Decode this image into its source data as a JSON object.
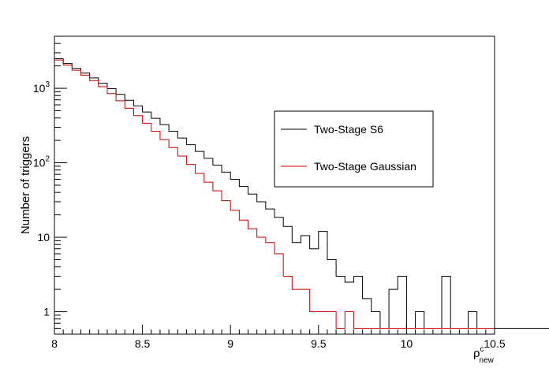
{
  "chart_data": {
    "type": "line",
    "subtype": "step-histogram",
    "title": "",
    "xlabel": "ρ",
    "xlabel_superscript": "c",
    "xlabel_subscript": "new",
    "ylabel": "Number of triggers",
    "xlim": [
      8,
      10.5
    ],
    "ylim": [
      0.5,
      5000
    ],
    "yscale": "log",
    "bin_width": 0.05,
    "x_ticks": [
      {
        "v": 8,
        "label": "8"
      },
      {
        "v": 8.5,
        "label": "8.5"
      },
      {
        "v": 9,
        "label": "9"
      },
      {
        "v": 9.5,
        "label": "9.5"
      },
      {
        "v": 10,
        "label": "10"
      },
      {
        "v": 10.5,
        "label": "10.5"
      }
    ],
    "y_ticks": [
      {
        "v": 1,
        "base": "1",
        "exp": ""
      },
      {
        "v": 10,
        "base": "10",
        "exp": ""
      },
      {
        "v": 100,
        "base": "10",
        "exp": "2"
      },
      {
        "v": 1000,
        "base": "10",
        "exp": "3"
      }
    ],
    "grid": false,
    "legend_position": "upper-right",
    "series": [
      {
        "name": "Two-Stage S6",
        "color": "#000000",
        "x_start": 8.0,
        "values": [
          2500,
          2150,
          1850,
          1600,
          1380,
          1170,
          990,
          830,
          690,
          580,
          480,
          395,
          325,
          265,
          215,
          175,
          142,
          115,
          93,
          75,
          60,
          48,
          38,
          30,
          24,
          18.5,
          14,
          8.5,
          10.5,
          7,
          12,
          5,
          3,
          2.5,
          3,
          1.5,
          1,
          0.6,
          2,
          3,
          0.6,
          1,
          0.6,
          0.6,
          3,
          0.6,
          0.6,
          1,
          0.6,
          0.6,
          0.6,
          0.6,
          0.6,
          0.6,
          0.6,
          0.6,
          0.6,
          0.6,
          0.6,
          0.6,
          0.6
        ]
      },
      {
        "name": "Two-Stage Gaussian",
        "color": "#cc0000",
        "x_start": 8.0,
        "values": [
          2400,
          2050,
          1750,
          1500,
          1270,
          1050,
          850,
          680,
          540,
          430,
          340,
          265,
          205,
          160,
          123,
          95,
          72,
          55,
          42,
          31,
          23,
          17,
          13,
          10,
          8.5,
          6,
          3,
          2,
          2,
          1,
          1,
          1,
          0.6,
          1,
          0.6,
          0.6,
          0.6,
          0.6,
          0.6,
          0.6,
          0.6,
          0.6,
          0.6,
          0.6,
          0.6,
          0.6,
          0.6,
          0.6,
          0.6,
          0.6,
          0.6
        ]
      }
    ]
  }
}
